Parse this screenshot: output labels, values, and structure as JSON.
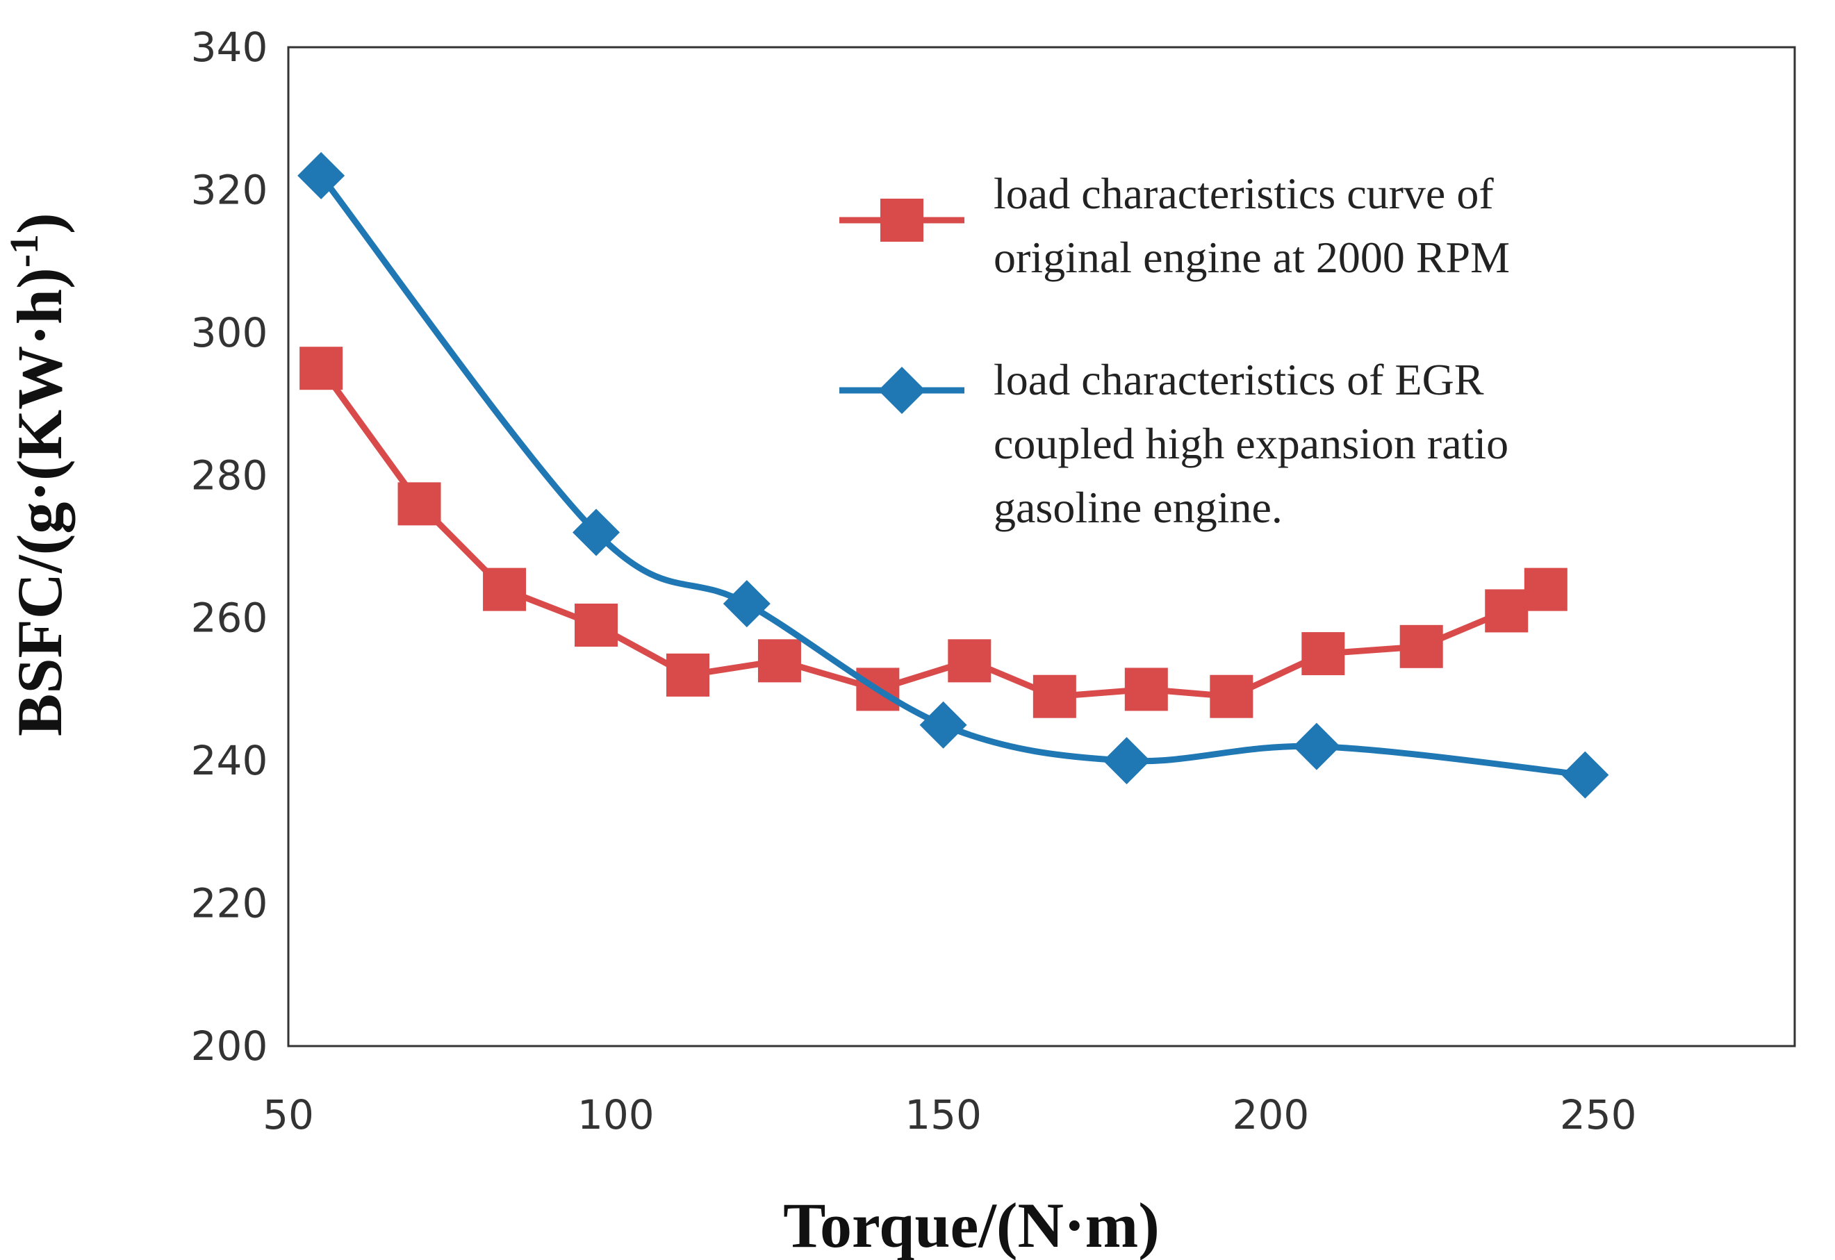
{
  "chart_data": {
    "type": "line",
    "title": "",
    "xlabel": "Torque/(N·m)",
    "ylabel_main": "BSFC/(g·(KW·h)",
    "ylabel_sup": "-1",
    "ylabel_close": ")",
    "xlim": [
      50,
      280
    ],
    "ylim": [
      200,
      340
    ],
    "xticks": [
      50,
      100,
      150,
      200,
      250
    ],
    "yticks": [
      200,
      220,
      240,
      260,
      280,
      300,
      320,
      340
    ],
    "legend_position": "top-right",
    "series": [
      {
        "name": "load characteristics curve of original engine at 2000 RPM",
        "legend_lines": [
          "load characteristics curve of",
          "original engine at 2000 RPM"
        ],
        "color": "#d94b4b",
        "marker": "square",
        "smooth": false,
        "x": [
          55,
          70,
          83,
          97,
          111,
          125,
          140,
          154,
          167,
          181,
          194,
          208,
          223,
          236,
          242
        ],
        "y": [
          295,
          276,
          264,
          259,
          252,
          254,
          250,
          254,
          249,
          250,
          249,
          255,
          256,
          261,
          264
        ]
      },
      {
        "name": "load characteristics of EGR coupled high expansion ratio gasoline engine.",
        "legend_lines": [
          "load characteristics of EGR",
          "coupled high expansion ratio",
          "gasoline engine."
        ],
        "color": "#1f77b4",
        "marker": "diamond",
        "smooth": true,
        "x": [
          55,
          97,
          120,
          150,
          178,
          207,
          248
        ],
        "y": [
          322,
          272,
          262,
          245,
          240,
          242,
          238
        ]
      }
    ]
  }
}
